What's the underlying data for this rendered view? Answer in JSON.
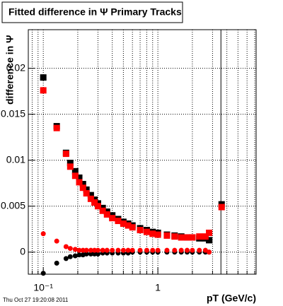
{
  "chart_data": {
    "type": "scatter",
    "title": "Fitted difference in Ψ   Primary Tracks",
    "y_label": "difference in Ψ",
    "x_label": "pT (GeV/c)",
    "footer": "Thu Oct 27 19:20:08 2011",
    "log_x": true,
    "grid": true,
    "xlim": [
      0.074,
      7.2
    ],
    "ylim": [
      -0.0024,
      0.0242
    ],
    "xticks": [
      {
        "value": 0.1,
        "label": "10⁻¹"
      },
      1
    ],
    "xminor": [
      0.08,
      0.09,
      0.2,
      0.3,
      0.4,
      0.5,
      0.6,
      0.7,
      0.8,
      0.9,
      2,
      3,
      4,
      5,
      6,
      7
    ],
    "yticks": [
      0,
      0.005,
      0.01,
      0.015,
      0.02
    ],
    "vertical_line_x": 3.55,
    "x": [
      0.1,
      0.131,
      0.158,
      0.172,
      0.19,
      0.206,
      0.222,
      0.238,
      0.26,
      0.28,
      0.3,
      0.33,
      0.36,
      0.4,
      0.45,
      0.5,
      0.55,
      0.6,
      0.7,
      0.8,
      0.9,
      1.0,
      1.2,
      1.4,
      1.6,
      1.8,
      2.0,
      2.3,
      2.6,
      2.8,
      3.6
    ],
    "series": [
      {
        "color": "#000000",
        "marker": "square",
        "values": [
          0.019,
          0.0137,
          0.0108,
          0.0097,
          0.0088,
          0.0081,
          0.0074,
          0.0068,
          0.0062,
          0.0057,
          0.0053,
          0.0048,
          0.0044,
          0.004,
          0.0036,
          0.0033,
          0.0031,
          0.0029,
          0.0026,
          0.0024,
          0.0022,
          0.0021,
          0.0019,
          0.0018,
          0.0017,
          0.0016,
          0.0016,
          0.0015,
          0.0015,
          0.0013,
          0.0052
        ]
      },
      {
        "color": "#ff0000",
        "marker": "square",
        "values": [
          0.0176,
          0.0135,
          0.0107,
          0.0093,
          0.0083,
          0.0076,
          0.007,
          0.0064,
          0.0058,
          0.0054,
          0.005,
          0.0045,
          0.0041,
          0.0037,
          0.0034,
          0.0031,
          0.0029,
          0.0027,
          0.0024,
          0.0022,
          0.002,
          0.0019,
          0.0018,
          0.0017,
          0.0016,
          0.0016,
          0.0016,
          0.0017,
          0.0017,
          0.0021,
          0.0049
        ]
      },
      {
        "color": "#000000",
        "marker": "circle",
        "values": [
          -0.0023,
          -0.0012,
          -0.0007,
          -0.0005,
          -0.0004,
          -0.0003,
          -0.0003,
          -0.0002,
          -0.0002,
          -0.0002,
          -0.0002,
          -0.0001,
          -0.0001,
          -0.0001,
          -0.0001,
          -0.0001,
          -0.0001,
          0,
          0,
          0,
          0,
          0,
          0,
          0,
          0,
          0,
          0,
          0,
          0,
          0,
          null
        ]
      },
      {
        "color": "#ff0000",
        "marker": "circle",
        "values": [
          0.002,
          0.0012,
          0.0006,
          0.0004,
          0.0003,
          0.0002,
          0.0002,
          0.0002,
          0.0002,
          0.0002,
          0.0002,
          0.0002,
          0.0002,
          0.0002,
          0.0002,
          0.0002,
          0.0002,
          0.0002,
          0.0002,
          0.0002,
          0.0002,
          0.0002,
          0.0002,
          0.0002,
          0.0002,
          0.0002,
          0.0002,
          0.0002,
          0.0002,
          0,
          null
        ]
      }
    ]
  }
}
